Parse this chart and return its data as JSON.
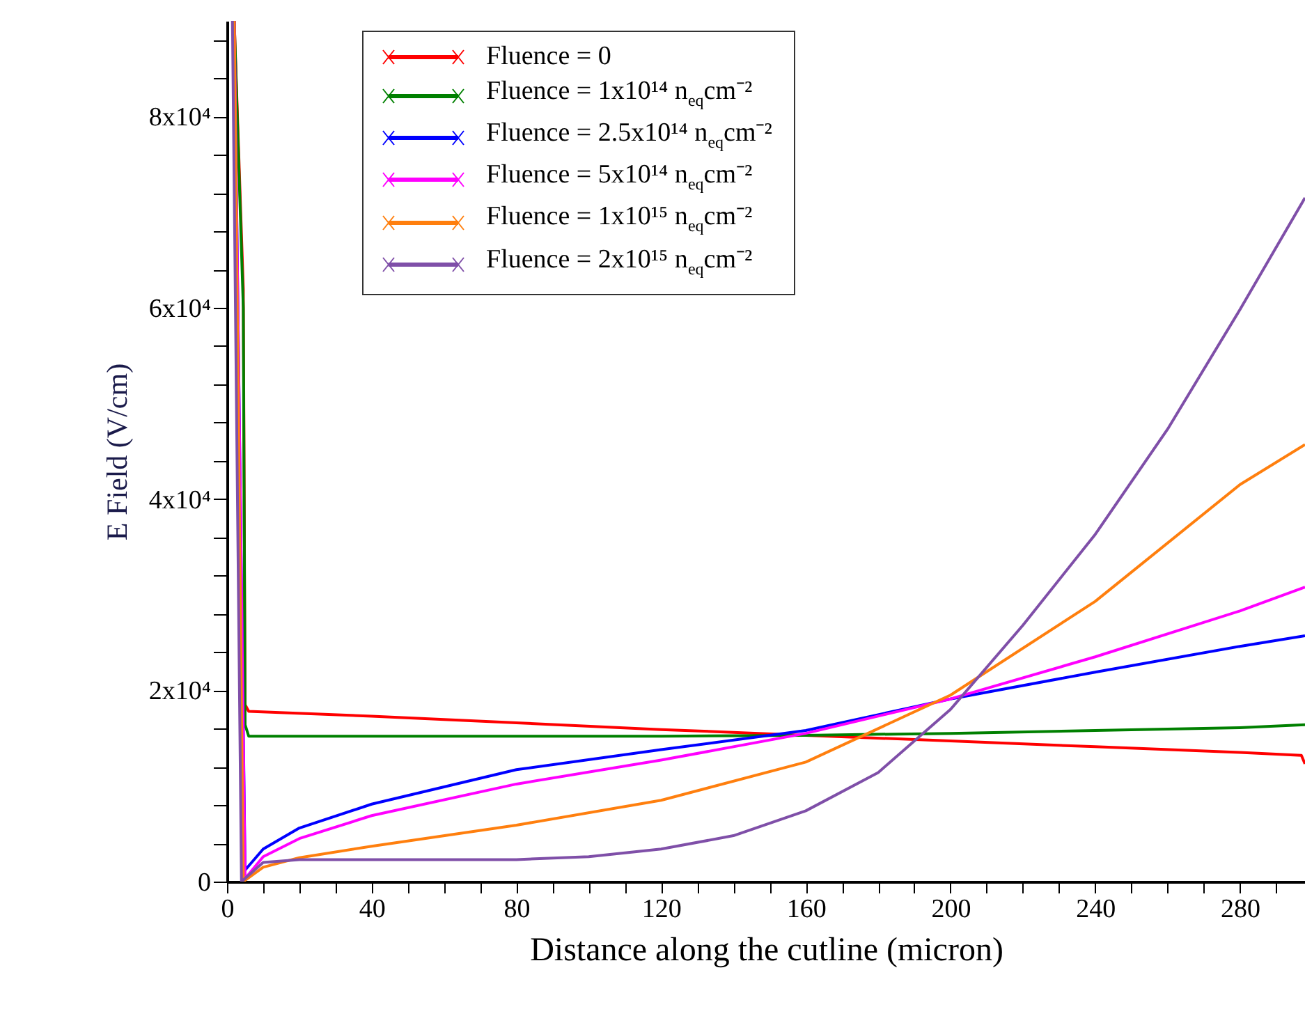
{
  "chart_data": {
    "type": "line",
    "xlabel": "Distance along the cutline (micron)",
    "ylabel": "E Field (V/cm)",
    "xlim": [
      0,
      298
    ],
    "ylim": [
      0,
      90000
    ],
    "xticks": [
      0,
      {
        "value": 10,
        "label": null
      },
      {
        "value": 20,
        "label": null
      },
      {
        "value": 30,
        "label": null
      },
      40,
      {
        "value": 50,
        "label": null
      },
      {
        "value": 60,
        "label": null
      },
      {
        "value": 70,
        "label": null
      },
      80,
      {
        "value": 90,
        "label": null
      },
      {
        "value": 100,
        "label": null
      },
      {
        "value": 110,
        "label": null
      },
      120,
      {
        "value": 130,
        "label": null
      },
      {
        "value": 140,
        "label": null
      },
      {
        "value": 150,
        "label": null
      },
      160,
      {
        "value": 170,
        "label": null
      },
      {
        "value": 180,
        "label": null
      },
      {
        "value": 190,
        "label": null
      },
      200,
      {
        "value": 210,
        "label": null
      },
      {
        "value": 220,
        "label": null
      },
      {
        "value": 230,
        "label": null
      },
      240,
      {
        "value": 250,
        "label": null
      },
      {
        "value": 260,
        "label": null
      },
      {
        "value": 270,
        "label": null
      },
      280,
      {
        "value": 290,
        "label": null
      }
    ],
    "yticks": [
      0,
      {
        "value": 4000,
        "label": null
      },
      {
        "value": 8000,
        "label": null
      },
      {
        "value": 12000,
        "label": null
      },
      {
        "value": 16000,
        "label": null
      },
      {
        "value": 20000,
        "label": "2x10⁴"
      },
      {
        "value": 24000,
        "label": null
      },
      {
        "value": 28000,
        "label": null
      },
      {
        "value": 32000,
        "label": null
      },
      {
        "value": 36000,
        "label": null
      },
      {
        "value": 40000,
        "label": "4x10⁴"
      },
      {
        "value": 44000,
        "label": null
      },
      {
        "value": 48000,
        "label": null
      },
      {
        "value": 52000,
        "label": null
      },
      {
        "value": 56000,
        "label": null
      },
      {
        "value": 60000,
        "label": "6x10⁴"
      },
      {
        "value": 64000,
        "label": null
      },
      {
        "value": 68000,
        "label": null
      },
      {
        "value": 72000,
        "label": null
      },
      {
        "value": 76000,
        "label": null
      },
      {
        "value": 80000,
        "label": "8x10⁴"
      },
      {
        "value": 84000,
        "label": null
      },
      {
        "value": 88000,
        "label": null
      }
    ],
    "legend": "top left",
    "grid": false,
    "line_style": "solid",
    "series": [
      {
        "name": "Fluence = 0",
        "color": "#ff0000",
        "x": [
          2,
          4.5,
          5,
          6,
          40,
          80,
          120,
          160,
          200,
          240,
          280,
          297,
          298
        ],
        "values": [
          90000,
          62000,
          18500,
          17800,
          17300,
          16600,
          15900,
          15300,
          14700,
          14100,
          13500,
          13200,
          12300
        ]
      },
      {
        "name": "Fluence = 1x10¹⁴ n$_{eq}$cm⁻²",
        "color": "#008000",
        "x": [
          2,
          4.5,
          5,
          6,
          40,
          80,
          120,
          160,
          200,
          240,
          280,
          298
        ],
        "values": [
          90000,
          60000,
          16400,
          15200,
          15200,
          15200,
          15200,
          15300,
          15500,
          15800,
          16100,
          16400
        ]
      },
      {
        "name": "Fluence = 2.5x10¹⁴ n$_{eq}$cm⁻²",
        "color": "#0000ff",
        "x": [
          2,
          5,
          10,
          20,
          40,
          80,
          120,
          160,
          200,
          240,
          280,
          298
        ],
        "values": [
          90000,
          1200,
          3400,
          5600,
          8100,
          11700,
          13800,
          15800,
          19100,
          21900,
          24600,
          25700
        ]
      },
      {
        "name": "Fluence = 5x10¹⁴ n$_{eq}$cm⁻²",
        "color": "#ff00ff",
        "x": [
          2,
          5,
          10,
          20,
          40,
          80,
          120,
          160,
          200,
          240,
          280,
          298
        ],
        "values": [
          90000,
          300,
          2600,
          4500,
          6900,
          10200,
          12700,
          15500,
          19100,
          23500,
          28300,
          30800
        ]
      },
      {
        "name": "Fluence = 1x10¹⁵ n$_{eq}$cm⁻²",
        "color": "#ff7f0e",
        "x": [
          2,
          4.5,
          10,
          20,
          40,
          80,
          120,
          160,
          200,
          240,
          280,
          298
        ],
        "values": [
          90000,
          0,
          1500,
          2500,
          3700,
          5900,
          8500,
          12500,
          19500,
          29300,
          41500,
          45700
        ]
      },
      {
        "name": "Fluence = 2x10¹⁵ n$_{eq}$cm⁻²",
        "color": "#7f4fa8",
        "x": [
          1.5,
          4,
          10,
          20,
          40,
          80,
          100,
          120,
          140,
          160,
          180,
          200,
          220,
          240,
          260,
          280,
          298
        ],
        "values": [
          90000,
          0,
          2000,
          2300,
          2300,
          2300,
          2600,
          3400,
          4800,
          7400,
          11400,
          18000,
          26800,
          36300,
          47300,
          59800,
          71500
        ]
      }
    ]
  }
}
